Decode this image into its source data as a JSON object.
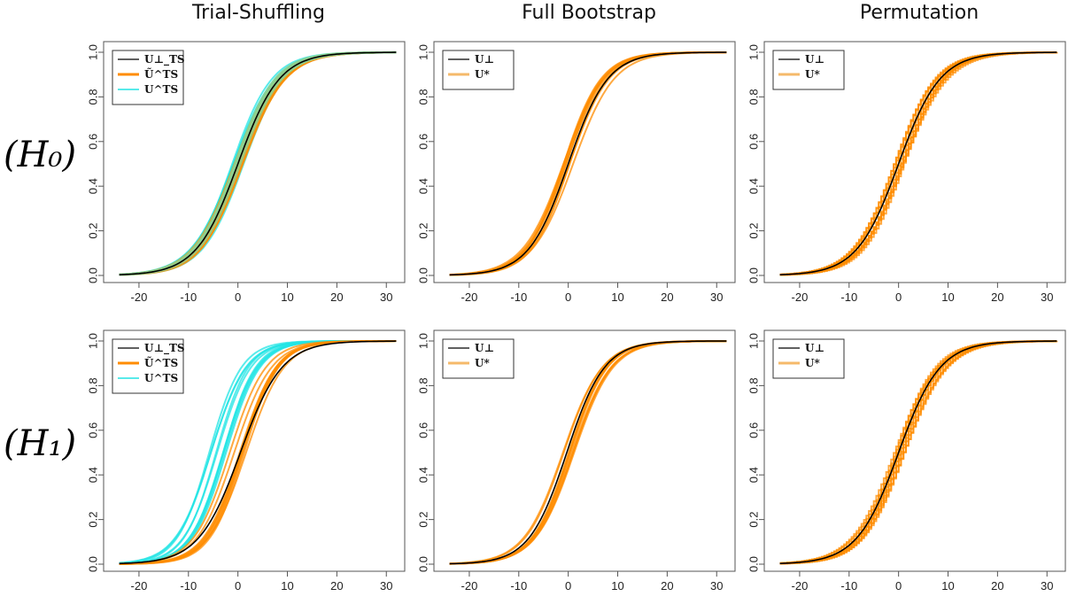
{
  "columns": [
    "Trial-Shuffling",
    "Full Bootstrap",
    "Permutation"
  ],
  "rows": [
    "(H₀)",
    "(H₁)"
  ],
  "colors": {
    "reference": "#000000",
    "bootstrap": "#ff8c00",
    "bootstrap_light": "#f5b96a",
    "ts": "#22e4e4",
    "ts_overlap": "#8fcf8f"
  },
  "chart_data": [
    {
      "type": "line",
      "panel": "H0-trial-shuffling",
      "column": "Trial-Shuffling",
      "row": "(H0)",
      "xlim": [
        -25,
        33
      ],
      "ylim": [
        0,
        1
      ],
      "x_ticks": [
        "-20",
        "-10",
        "0",
        "10",
        "20",
        "30"
      ],
      "y_ticks": [
        "0.0",
        "0.2",
        "0.4",
        "0.6",
        "0.8",
        "1.0"
      ],
      "legend": [
        "U⊥_TS",
        "Ũ^TS",
        "U^TS"
      ],
      "legend_position": "top-left",
      "series": [
        {
          "name": "U⊥_TS",
          "curve": "cdf",
          "center": 0,
          "scale": 4.2
        },
        {
          "name": "Ũ^TS",
          "curve": "cdf",
          "center": 0,
          "scale": 4.2,
          "spread": 0.6
        },
        {
          "name": "U^TS",
          "curve": "cdf",
          "center": 0,
          "scale": 4.2,
          "spread": 0.6
        }
      ]
    },
    {
      "type": "line",
      "panel": "H0-full-bootstrap",
      "column": "Full Bootstrap",
      "row": "(H0)",
      "xlim": [
        -25,
        33
      ],
      "ylim": [
        0,
        1
      ],
      "x_ticks": [
        "-20",
        "-10",
        "0",
        "10",
        "20",
        "30"
      ],
      "y_ticks": [
        "0.0",
        "0.2",
        "0.4",
        "0.6",
        "0.8",
        "1.0"
      ],
      "legend": [
        "U⊥",
        "U*"
      ],
      "legend_position": "top-left",
      "series": [
        {
          "name": "U⊥",
          "curve": "cdf",
          "center": 0,
          "scale": 4.0
        },
        {
          "name": "U*",
          "curve": "cdf",
          "center": 0,
          "scale": 4.0,
          "spread": 0.5
        }
      ]
    },
    {
      "type": "line",
      "panel": "H0-permutation",
      "column": "Permutation",
      "row": "(H0)",
      "xlim": [
        -25,
        33
      ],
      "ylim": [
        0,
        1
      ],
      "x_ticks": [
        "-20",
        "-10",
        "0",
        "10",
        "20",
        "30"
      ],
      "y_ticks": [
        "0.0",
        "0.2",
        "0.4",
        "0.6",
        "0.8",
        "1.0"
      ],
      "legend": [
        "U⊥",
        "U*"
      ],
      "legend_position": "top-left",
      "series": [
        {
          "name": "U⊥",
          "curve": "cdf",
          "center": 0,
          "scale": 4.2
        },
        {
          "name": "U*",
          "curve": "step-cdf",
          "center": 0,
          "scale": 4.2,
          "spread": 0.5
        }
      ]
    },
    {
      "type": "line",
      "panel": "H1-trial-shuffling",
      "column": "Trial-Shuffling",
      "row": "(H1)",
      "xlim": [
        -25,
        33
      ],
      "ylim": [
        0,
        1
      ],
      "x_ticks": [
        "-20",
        "-10",
        "0",
        "10",
        "20",
        "30"
      ],
      "y_ticks": [
        "0.0",
        "0.2",
        "0.4",
        "0.6",
        "0.8",
        "1.0"
      ],
      "legend": [
        "U⊥_TS",
        "Ũ^TS",
        "U^TS"
      ],
      "legend_position": "top-left",
      "series": [
        {
          "name": "U⊥_TS",
          "curve": "cdf",
          "center": 0.5,
          "scale": 4.2
        },
        {
          "name": "Ũ^TS",
          "curve": "cdf",
          "center": 0,
          "scale": 3.6,
          "spread": 0.9
        },
        {
          "name": "U^TS",
          "curve": "cdf",
          "center": -4,
          "scale": 3.4,
          "spread": 0.9
        }
      ]
    },
    {
      "type": "line",
      "panel": "H1-full-bootstrap",
      "column": "Full Bootstrap",
      "row": "(H1)",
      "xlim": [
        -25,
        33
      ],
      "ylim": [
        0,
        1
      ],
      "x_ticks": [
        "-20",
        "-10",
        "0",
        "10",
        "20",
        "30"
      ],
      "y_ticks": [
        "0.0",
        "0.2",
        "0.4",
        "0.6",
        "0.8",
        "1.0"
      ],
      "legend": [
        "U⊥",
        "U*"
      ],
      "legend_position": "top-left",
      "series": [
        {
          "name": "U⊥",
          "curve": "cdf",
          "center": -0.3,
          "scale": 3.8
        },
        {
          "name": "U*",
          "curve": "cdf",
          "center": 0,
          "scale": 3.8,
          "spread": 0.6
        }
      ]
    },
    {
      "type": "line",
      "panel": "H1-permutation",
      "column": "Permutation",
      "row": "(H1)",
      "xlim": [
        -25,
        33
      ],
      "ylim": [
        0,
        1
      ],
      "x_ticks": [
        "-20",
        "-10",
        "0",
        "10",
        "20",
        "30"
      ],
      "y_ticks": [
        "0.0",
        "0.2",
        "0.4",
        "0.6",
        "0.8",
        "1.0"
      ],
      "legend": [
        "U⊥",
        "U*"
      ],
      "legend_position": "top-left",
      "series": [
        {
          "name": "U⊥",
          "curve": "cdf",
          "center": 0,
          "scale": 4.2
        },
        {
          "name": "U*",
          "curve": "step-cdf",
          "center": 0,
          "scale": 4.2,
          "spread": 0.5
        }
      ]
    }
  ]
}
